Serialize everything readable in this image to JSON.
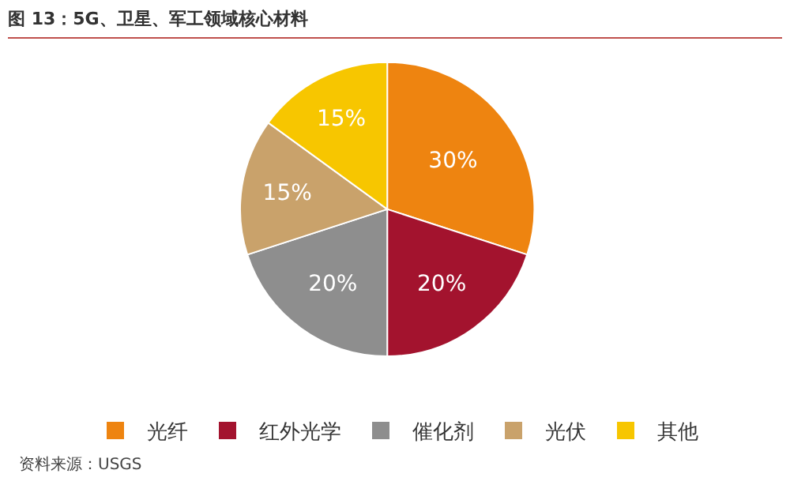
{
  "chart_data": {
    "type": "pie",
    "title": "图 13：5G、卫星、军工领域核心材料",
    "categories": [
      "光纤",
      "红外光学",
      "催化剂",
      "光伏",
      "其他"
    ],
    "values": [
      30,
      20,
      20,
      15,
      15
    ],
    "colors": [
      "#ee8410",
      "#a3132e",
      "#8e8e8e",
      "#c9a26b",
      "#f7c600"
    ],
    "value_labels": [
      "30%",
      "20%",
      "20%",
      "15%",
      "15%"
    ],
    "legend": "bottom",
    "annotations": [
      "资料来源：USGS"
    ]
  }
}
